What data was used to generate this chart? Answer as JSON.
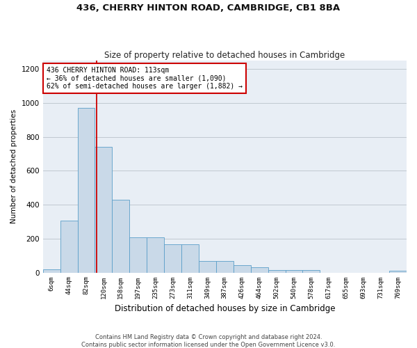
{
  "title1": "436, CHERRY HINTON ROAD, CAMBRIDGE, CB1 8BA",
  "title2": "Size of property relative to detached houses in Cambridge",
  "xlabel": "Distribution of detached houses by size in Cambridge",
  "ylabel": "Number of detached properties",
  "footer1": "Contains HM Land Registry data © Crown copyright and database right 2024.",
  "footer2": "Contains public sector information licensed under the Open Government Licence v3.0.",
  "annotation_line1": "436 CHERRY HINTON ROAD: 113sqm",
  "annotation_line2": "← 36% of detached houses are smaller (1,090)",
  "annotation_line3": "62% of semi-detached houses are larger (1,882) →",
  "bar_labels": [
    "6sqm",
    "44sqm",
    "82sqm",
    "120sqm",
    "158sqm",
    "197sqm",
    "235sqm",
    "273sqm",
    "311sqm",
    "349sqm",
    "387sqm",
    "426sqm",
    "464sqm",
    "502sqm",
    "540sqm",
    "578sqm",
    "617sqm",
    "655sqm",
    "693sqm",
    "731sqm",
    "769sqm"
  ],
  "bar_values": [
    20,
    305,
    970,
    740,
    430,
    207,
    207,
    165,
    165,
    70,
    68,
    42,
    30,
    15,
    15,
    13,
    0,
    0,
    0,
    0,
    10
  ],
  "bar_color": "#c9d9e8",
  "bar_edge_color": "#5a9ec8",
  "vline_x": 2.62,
  "ylim": [
    0,
    1250
  ],
  "yticks": [
    0,
    200,
    400,
    600,
    800,
    1000,
    1200
  ],
  "annotation_box_color": "#ffffff",
  "annotation_box_edge": "#cc0000",
  "vline_color": "#cc0000",
  "background_color": "#ffffff",
  "plot_bg_color": "#e8eef5",
  "grid_color": "#c0c8d0"
}
